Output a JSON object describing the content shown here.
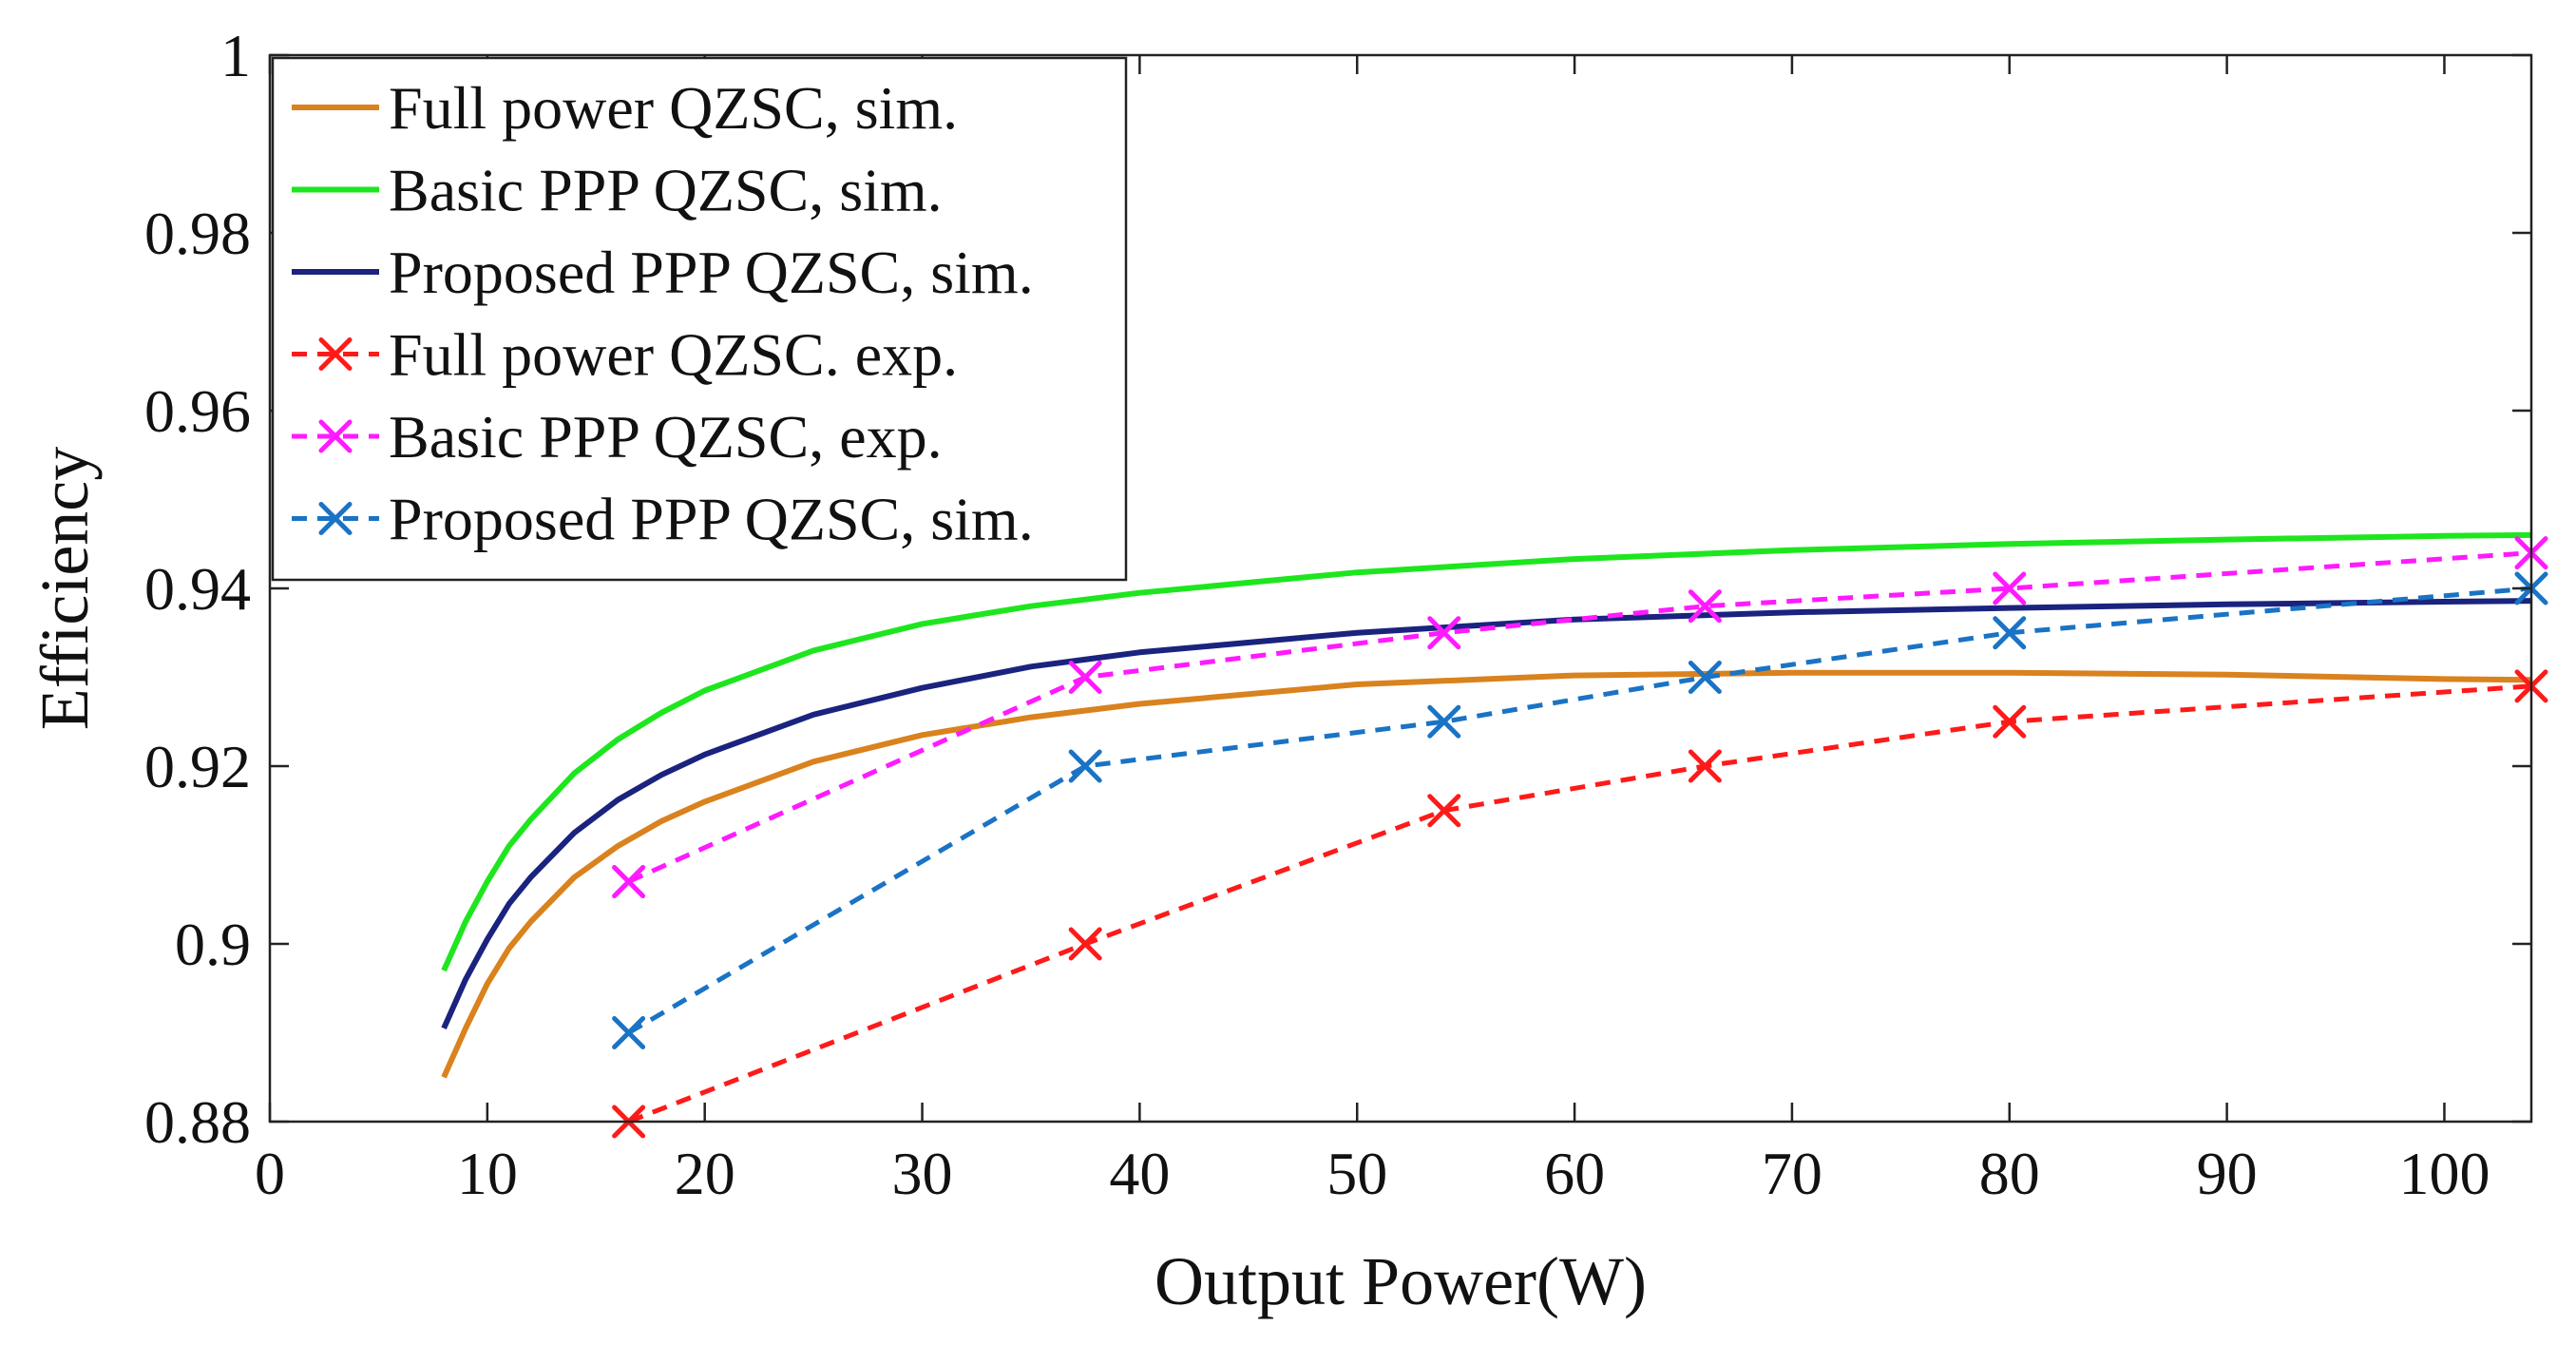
{
  "chart_data": {
    "type": "line",
    "title": "",
    "xlabel": "Output Power(W)",
    "ylabel": "Efficiency",
    "xlim": [
      0,
      104
    ],
    "ylim": [
      0.88,
      1.0
    ],
    "x_ticks": [
      0,
      10,
      20,
      30,
      40,
      50,
      60,
      70,
      80,
      90,
      100
    ],
    "x_tick_labels": [
      "0",
      "10",
      "20",
      "30",
      "40",
      "50",
      "60",
      "70",
      "80",
      "90",
      "100"
    ],
    "y_ticks": [
      0.88,
      0.9,
      0.92,
      0.94,
      0.96,
      0.98,
      1.0
    ],
    "y_tick_labels": [
      "0.88",
      "0.9",
      "0.92",
      "0.94",
      "0.96",
      "0.98",
      "1"
    ],
    "grid": false,
    "legend_position": "top-left",
    "series": [
      {
        "name": "Full power QZSC, sim.",
        "color": "#d9821e",
        "style": "solid",
        "marker": "none",
        "x": [
          8,
          9,
          10,
          11,
          12,
          14,
          16,
          18,
          20,
          25,
          30,
          35,
          40,
          50,
          60,
          70,
          80,
          90,
          100,
          104
        ],
        "y": [
          0.885,
          0.8905,
          0.8955,
          0.8995,
          0.9025,
          0.9075,
          0.911,
          0.9138,
          0.916,
          0.9205,
          0.9235,
          0.9255,
          0.927,
          0.9292,
          0.9302,
          0.9305,
          0.9305,
          0.9303,
          0.9298,
          0.9297
        ]
      },
      {
        "name": "Basic PPP QZSC, sim.",
        "color": "#1ee61e",
        "style": "solid",
        "marker": "none",
        "x": [
          8,
          9,
          10,
          11,
          12,
          14,
          16,
          18,
          20,
          25,
          30,
          35,
          40,
          50,
          60,
          70,
          80,
          90,
          100,
          104
        ],
        "y": [
          0.897,
          0.9025,
          0.907,
          0.911,
          0.914,
          0.9192,
          0.923,
          0.926,
          0.9285,
          0.933,
          0.936,
          0.938,
          0.9395,
          0.9418,
          0.9433,
          0.9443,
          0.945,
          0.9455,
          0.9459,
          0.946
        ]
      },
      {
        "name": "Proposed PPP QZSC, sim.",
        "color": "#1a237e",
        "style": "solid",
        "marker": "none",
        "x": [
          8,
          9,
          10,
          11,
          12,
          14,
          16,
          18,
          20,
          25,
          30,
          35,
          40,
          50,
          60,
          70,
          80,
          90,
          100,
          104
        ],
        "y": [
          0.8905,
          0.896,
          0.9005,
          0.9045,
          0.9075,
          0.9125,
          0.9162,
          0.919,
          0.9213,
          0.9258,
          0.9288,
          0.9312,
          0.9328,
          0.935,
          0.9365,
          0.9373,
          0.9378,
          0.9382,
          0.9385,
          0.9386
        ]
      },
      {
        "name": "Full power QZSC. exp.",
        "color": "#ff1a1a",
        "style": "dashed",
        "marker": "x",
        "x": [
          16.5,
          37.5,
          54,
          66,
          80,
          104
        ],
        "y": [
          0.88,
          0.9,
          0.915,
          0.92,
          0.925,
          0.929
        ]
      },
      {
        "name": "Basic PPP QZSC, exp.",
        "color": "#ff1aff",
        "style": "dashed",
        "marker": "x",
        "x": [
          16.5,
          37.5,
          54,
          66,
          80,
          104
        ],
        "y": [
          0.907,
          0.93,
          0.935,
          0.938,
          0.94,
          0.944
        ]
      },
      {
        "name": "Proposed PPP QZSC, sim.",
        "color": "#1a73c4",
        "style": "dashed",
        "marker": "x",
        "x": [
          16.5,
          37.5,
          54,
          66,
          80,
          104
        ],
        "y": [
          0.89,
          0.92,
          0.925,
          0.93,
          0.935,
          0.94
        ]
      }
    ]
  }
}
